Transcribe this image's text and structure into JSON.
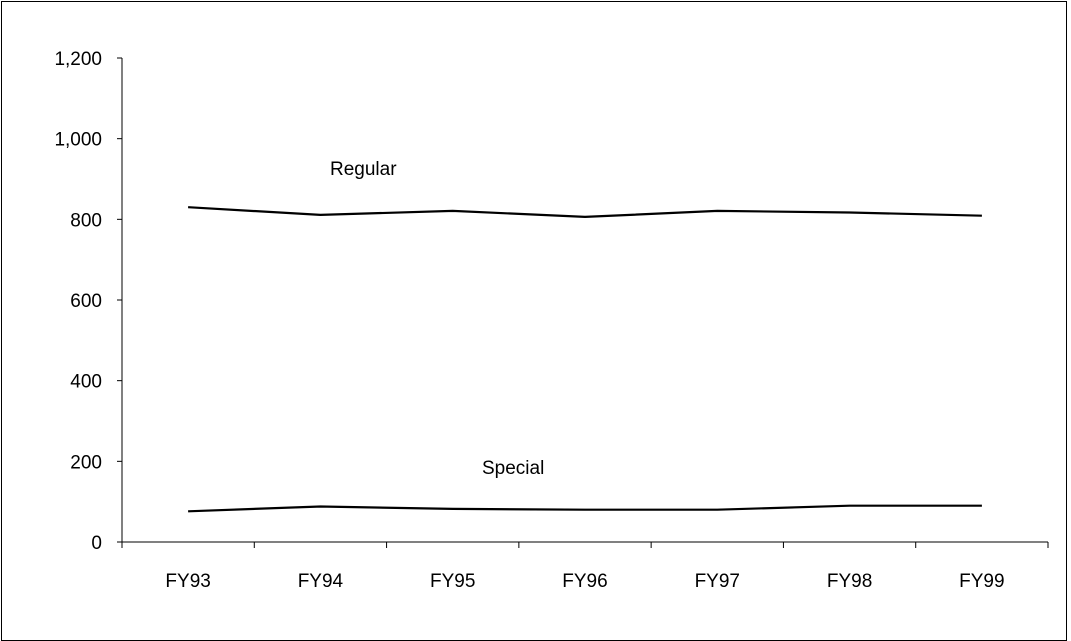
{
  "chart_data": {
    "type": "line",
    "title": "",
    "xlabel": "",
    "ylabel": "",
    "categories": [
      "FY93",
      "FY94",
      "FY95",
      "FY96",
      "FY97",
      "FY98",
      "FY99"
    ],
    "series": [
      {
        "name": "Regular",
        "values": [
          830,
          811,
          821,
          806,
          821,
          817,
          809
        ]
      },
      {
        "name": "Special",
        "values": [
          76,
          88,
          82,
          80,
          80,
          90,
          90
        ]
      }
    ],
    "ylim": [
      0,
      1200
    ],
    "yticks": [
      0,
      200,
      400,
      600,
      800,
      1000,
      1200
    ],
    "ytick_labels": [
      "0",
      "200",
      "400",
      "600",
      "800",
      "1,000",
      "1,200"
    ],
    "grid": false,
    "legend": "inline labels",
    "line_color": "#000000"
  }
}
